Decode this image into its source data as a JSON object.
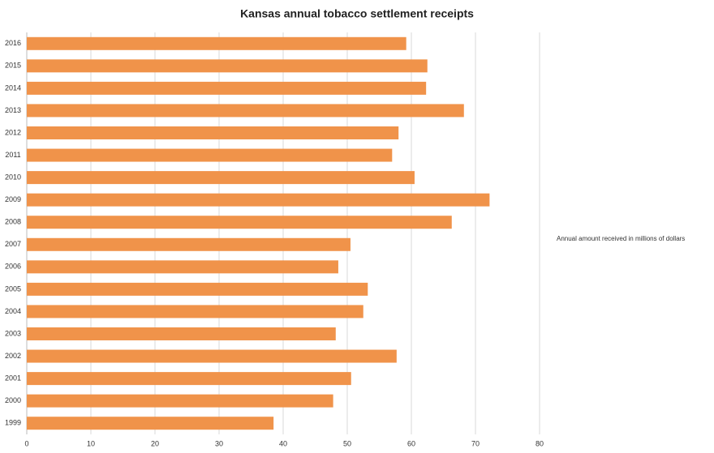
{
  "chart_data": {
    "type": "bar",
    "orientation": "horizontal",
    "title": "Kansas annual tobacco settlement receipts",
    "categories": [
      "1999",
      "2000",
      "2001",
      "2002",
      "2003",
      "2004",
      "2005",
      "2006",
      "2007",
      "2008",
      "2009",
      "2010",
      "2011",
      "2012",
      "2013",
      "2014",
      "2015",
      "2016"
    ],
    "series": [
      {
        "name": "Annual amount received in millions of dollars",
        "color": "#f0934a",
        "values": [
          38.5,
          47.8,
          50.6,
          57.7,
          48.2,
          52.5,
          53.2,
          48.6,
          50.5,
          66.3,
          72.2,
          60.5,
          57.0,
          58.0,
          68.2,
          62.3,
          62.5,
          59.2
        ]
      }
    ],
    "xlim": [
      0,
      80
    ],
    "xticks": [
      0,
      10,
      20,
      30,
      40,
      50,
      60,
      70,
      80
    ],
    "grid": true,
    "legend": "right"
  }
}
